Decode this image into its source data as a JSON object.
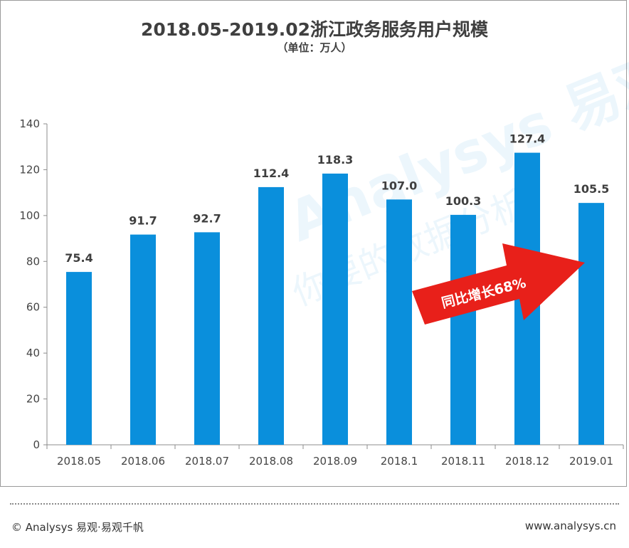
{
  "chart_data": {
    "type": "bar",
    "title": "2018.05-2019.02浙江政务服务用户规模",
    "subtitle": "（单位：万人）",
    "categories": [
      "2018.05",
      "2018.06",
      "2018.07",
      "2018.08",
      "2018.09",
      "2018.1",
      "2018.11",
      "2018.12",
      "2019.01"
    ],
    "values": [
      75.4,
      91.7,
      92.7,
      112.4,
      118.3,
      107.0,
      100.3,
      127.4,
      105.5
    ],
    "value_labels": [
      "75.4",
      "91.7",
      "92.7",
      "112.4",
      "118.3",
      "107.0",
      "100.3",
      "127.4",
      "105.5"
    ],
    "ylim": [
      0,
      140
    ],
    "yticks": [
      0,
      20,
      40,
      60,
      80,
      100,
      120,
      140
    ],
    "grid": false,
    "bar_color": "#0a8fdc",
    "annotation": {
      "text": "同比增长68%",
      "color": "#e8201a"
    },
    "watermark": "Analysys 易观 你要的数据分析"
  },
  "footer": {
    "left": "© Analysys 易观·易观千帆",
    "right": "www.analysys.cn"
  }
}
